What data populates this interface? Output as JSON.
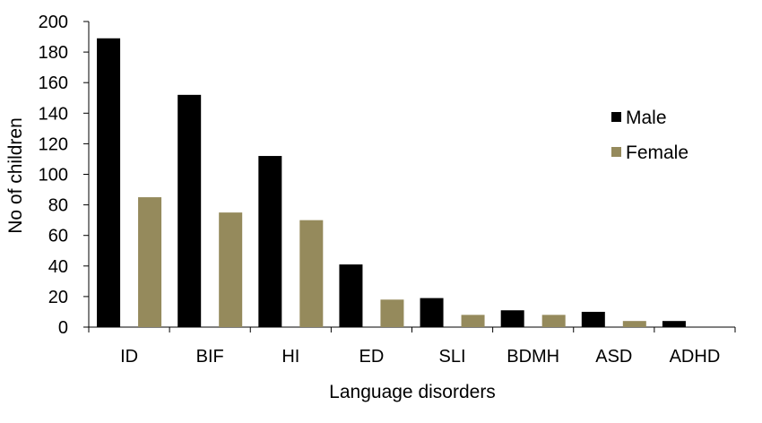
{
  "chart_data": {
    "type": "bar",
    "title": "",
    "xlabel": "Language disorders",
    "ylabel": "No of children",
    "categories": [
      "ID",
      "BIF",
      "HI",
      "ED",
      "SLI",
      "BDMH",
      "ASD",
      "ADHD"
    ],
    "series": [
      {
        "name": "Male",
        "color": "#000000",
        "values": [
          189,
          152,
          112,
          41,
          19,
          11,
          10,
          4
        ]
      },
      {
        "name": "Female",
        "color": "#958a5c",
        "values": [
          85,
          75,
          70,
          18,
          8,
          8,
          4,
          0
        ]
      }
    ],
    "ylim": [
      0,
      200
    ],
    "yticks": [
      "0",
      "20",
      "40",
      "60",
      "80",
      "100",
      "120",
      "140",
      "160",
      "180",
      "200"
    ],
    "legend_position": "right",
    "grid": false
  }
}
